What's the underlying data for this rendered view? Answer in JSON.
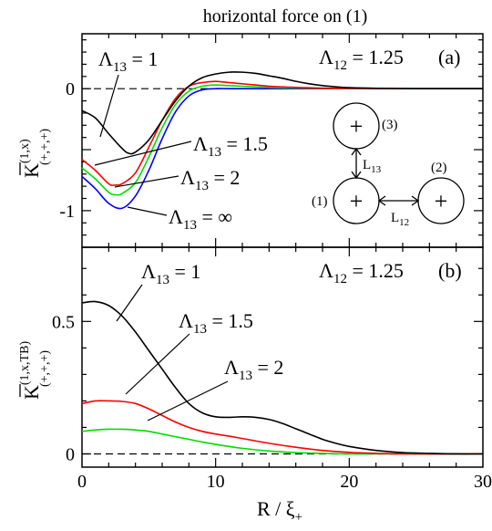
{
  "figure": {
    "title": "horizontal force on (1)",
    "xlabel_main": "R / ξ",
    "xlabel_sub": "+"
  },
  "chart_data": [
    {
      "type": "line",
      "panel_label": "(a)",
      "annotation_main": "Λ",
      "annotation_sub": "12",
      "annotation_rest": " = 1.25",
      "ylabel_main": "K",
      "ylabel_sup": "(1,x)",
      "ylabel_sub": "(+,+,+)",
      "xlim": [
        0,
        30
      ],
      "ylim": [
        -1.3,
        0.45
      ],
      "yticks": [
        0,
        -1
      ],
      "ytick_labels": [
        "0",
        "-1"
      ],
      "reference_line": 0,
      "series": [
        {
          "name_main": "Λ",
          "name_sub": "13",
          "name_rest": " = 1",
          "color": "#000000",
          "x": [
            0,
            1,
            2,
            3,
            3.5,
            4,
            5,
            6,
            7,
            8,
            9,
            10,
            11,
            12,
            13,
            14,
            15,
            16,
            17,
            18,
            19,
            20,
            22,
            25,
            30
          ],
          "y": [
            -0.18,
            -0.24,
            -0.37,
            -0.49,
            -0.53,
            -0.52,
            -0.42,
            -0.26,
            -0.1,
            0.02,
            0.09,
            0.12,
            0.135,
            0.135,
            0.125,
            0.105,
            0.085,
            0.06,
            0.04,
            0.025,
            0.015,
            0.008,
            0.003,
            0.0,
            0.0
          ]
        },
        {
          "name_main": "Λ",
          "name_sub": "13",
          "name_rest": " = 1.5",
          "color": "#ff0000",
          "x": [
            0,
            1,
            2,
            2.5,
            3,
            4,
            5,
            6,
            7,
            8,
            9,
            10,
            11,
            12,
            13,
            14,
            16,
            18,
            20,
            25,
            30
          ],
          "y": [
            -0.58,
            -0.67,
            -0.78,
            -0.79,
            -0.78,
            -0.69,
            -0.48,
            -0.26,
            -0.08,
            0.02,
            0.05,
            0.06,
            0.05,
            0.04,
            0.03,
            0.02,
            0.01,
            0.004,
            0.001,
            0.0,
            0.0
          ]
        },
        {
          "name_main": "Λ",
          "name_sub": "13",
          "name_rest": " = 2",
          "color": "#00dd00",
          "x": [
            0,
            1,
            2,
            2.5,
            3,
            4,
            5,
            6,
            7,
            8,
            9,
            10,
            11,
            12,
            14,
            16,
            18,
            20,
            25,
            30
          ],
          "y": [
            -0.65,
            -0.74,
            -0.85,
            -0.87,
            -0.86,
            -0.77,
            -0.56,
            -0.32,
            -0.13,
            -0.02,
            0.02,
            0.03,
            0.025,
            0.02,
            0.01,
            0.005,
            0.002,
            0.0,
            0.0,
            0.0
          ]
        },
        {
          "name_main": "Λ",
          "name_sub": "13",
          "name_rest": " = ∞",
          "color": "#0000ff",
          "x": [
            0,
            1,
            2,
            3,
            4,
            5,
            6,
            7,
            8,
            9,
            10,
            11,
            12,
            14,
            16,
            18,
            20,
            25,
            30
          ],
          "y": [
            -0.72,
            -0.82,
            -0.94,
            -0.98,
            -0.88,
            -0.67,
            -0.41,
            -0.19,
            -0.06,
            -0.01,
            0.0,
            0.0,
            0.0,
            0.0,
            0.0,
            0.0,
            0.0,
            0.0,
            0.0
          ]
        }
      ],
      "inset": {
        "circle_label": "+",
        "labels": [
          "(1)",
          "(2)",
          "(3)"
        ],
        "L12_main": "L",
        "L12_sub": "12",
        "L13_main": "L",
        "L13_sub": "13"
      }
    },
    {
      "type": "line",
      "panel_label": "(b)",
      "annotation_main": "Λ",
      "annotation_sub": "12",
      "annotation_rest": " = 1.25",
      "ylabel_main": "K",
      "ylabel_sup": "(1,x,TB)",
      "ylabel_sub": "(+,+,+)",
      "xlim": [
        0,
        30
      ],
      "ylim": [
        -0.05,
        0.78
      ],
      "yticks": [
        0,
        0.5
      ],
      "ytick_labels": [
        "0",
        "0.5"
      ],
      "reference_line": 0,
      "xticks": [
        0,
        10,
        20,
        30
      ],
      "xtick_labels": [
        "0",
        "10",
        "20",
        "30"
      ],
      "series": [
        {
          "name_main": "Λ",
          "name_sub": "13",
          "name_rest": " = 1",
          "color": "#000000",
          "x": [
            0,
            1,
            2,
            3,
            4,
            5,
            6,
            7,
            8,
            9,
            10,
            11,
            12,
            13,
            14,
            15,
            16,
            17,
            18,
            19,
            20,
            22,
            24,
            26,
            28,
            30
          ],
          "y": [
            0.57,
            0.575,
            0.56,
            0.52,
            0.46,
            0.39,
            0.32,
            0.25,
            0.19,
            0.155,
            0.14,
            0.138,
            0.14,
            0.138,
            0.13,
            0.115,
            0.095,
            0.075,
            0.055,
            0.04,
            0.028,
            0.013,
            0.005,
            0.002,
            0.0,
            0.0
          ]
        },
        {
          "name_main": "Λ",
          "name_sub": "13",
          "name_rest": " = 1.5",
          "color": "#ff0000",
          "x": [
            0,
            1,
            2,
            3,
            4,
            5,
            6,
            7,
            8,
            9,
            10,
            11,
            12,
            14,
            16,
            18,
            20,
            22,
            24,
            30
          ],
          "y": [
            0.19,
            0.2,
            0.2,
            0.198,
            0.19,
            0.17,
            0.145,
            0.12,
            0.1,
            0.085,
            0.075,
            0.067,
            0.058,
            0.04,
            0.025,
            0.013,
            0.006,
            0.002,
            0.0,
            0.0
          ]
        },
        {
          "name_main": "Λ",
          "name_sub": "13",
          "name_rest": " = 2",
          "color": "#00dd00",
          "x": [
            0,
            1,
            2,
            3,
            4,
            5,
            6,
            7,
            8,
            9,
            10,
            11,
            12,
            14,
            16,
            18,
            20,
            22,
            30
          ],
          "y": [
            0.085,
            0.09,
            0.093,
            0.093,
            0.09,
            0.085,
            0.075,
            0.065,
            0.055,
            0.045,
            0.036,
            0.028,
            0.021,
            0.011,
            0.005,
            0.002,
            0.0,
            0.0,
            0.0
          ]
        }
      ]
    }
  ]
}
